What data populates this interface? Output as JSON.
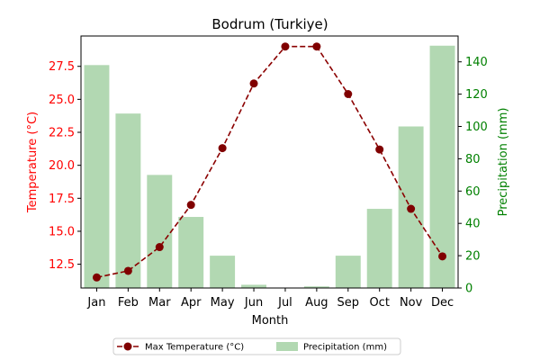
{
  "chart_data": {
    "type": "bar",
    "title": "Bodrum (Turkiye)",
    "xlabel": "Month",
    "ylabel_left": "Temperature (°C)",
    "ylabel_right": "Precipitation (mm)",
    "categories": [
      "Jan",
      "Feb",
      "Mar",
      "Apr",
      "May",
      "Jun",
      "Jul",
      "Aug",
      "Sep",
      "Oct",
      "Nov",
      "Dec"
    ],
    "ylim_left": [
      10.7,
      29.8
    ],
    "ylim_right": [
      0,
      156
    ],
    "yticks_left": [
      "12.5",
      "15.0",
      "17.5",
      "20.0",
      "22.5",
      "25.0",
      "27.5"
    ],
    "yticks_right": [
      "0",
      "20",
      "40",
      "60",
      "80",
      "100",
      "120",
      "140"
    ],
    "series": [
      {
        "name": "Precipitation (mm)",
        "kind": "bar",
        "axis": "right",
        "color": "#b2d8b2",
        "values": [
          138,
          108,
          70,
          44,
          20,
          2,
          0,
          1,
          20,
          49,
          100,
          150
        ]
      },
      {
        "name": "Max Temperature (°C)",
        "kind": "line",
        "axis": "left",
        "color": "#8b0000",
        "marker_color": "#800000",
        "values": [
          11.5,
          12.0,
          13.8,
          17.0,
          21.3,
          26.2,
          29.0,
          29.0,
          25.4,
          21.2,
          16.7,
          13.1
        ]
      }
    ],
    "left_axis_color": "#ff0000",
    "right_axis_color": "#008000",
    "legend_position": "bottom-center"
  }
}
